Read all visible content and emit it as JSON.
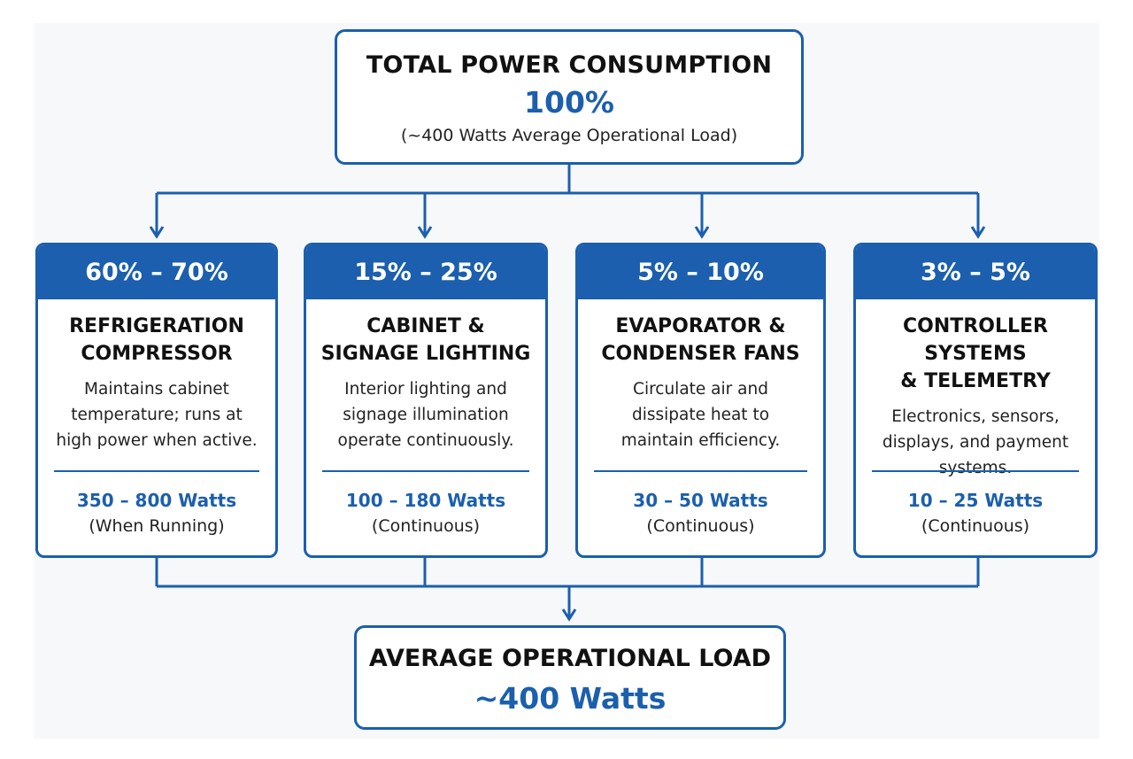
{
  "colors": {
    "accent": "#1b5fae",
    "text": "#111111",
    "background": "#ffffff"
  },
  "top": {
    "title": "TOTAL POWER CONSUMPTION",
    "percent": "100%",
    "subtitle": "(~400 Watts Average Operational Load)"
  },
  "components": [
    {
      "range": "60% – 70%",
      "title": "REFRIGERATION\nCOMPRESSOR",
      "description": "Maintains cabinet\ntemperature; runs at\nhigh power when active.",
      "watts": "350 – 800 Watts",
      "note": "(When Running)"
    },
    {
      "range": "15% – 25%",
      "title": "CABINET &\nSIGNAGE LIGHTING",
      "description": "Interior lighting and\nsignage illumination\noperate continuously.",
      "watts": "100 – 180 Watts",
      "note": "(Continuous)"
    },
    {
      "range": "5% – 10%",
      "title": "EVAPORATOR &\nCONDENSER FANS",
      "description": "Circulate air and\ndissipate heat to\nmaintain efficiency.",
      "watts": "30 – 50 Watts",
      "note": "(Continuous)"
    },
    {
      "range": "3% – 5%",
      "title": "CONTROLLER SYSTEMS\n& TELEMETRY",
      "description": "Electronics, sensors,\ndisplays, and payment\nsystems.",
      "watts": "10 – 25 Watts",
      "note": "(Continuous)"
    }
  ],
  "bottom": {
    "title": "AVERAGE OPERATIONAL LOAD",
    "value": "~400 Watts"
  }
}
